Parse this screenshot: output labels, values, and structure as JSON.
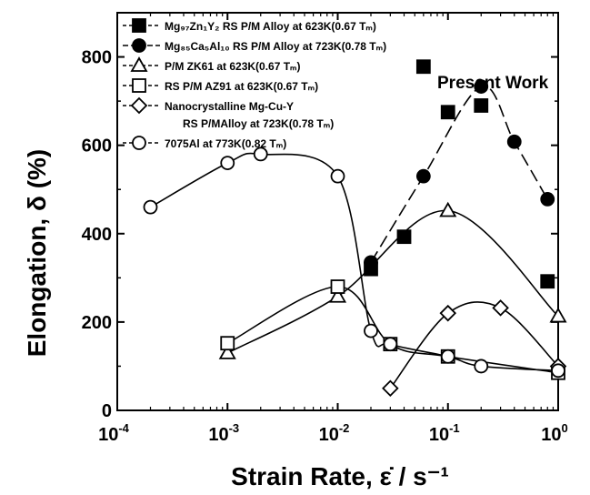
{
  "chart_data": {
    "type": "scatter",
    "title": "",
    "xlabel": "Strain Rate, ε̇ / s⁻¹",
    "ylabel": "Elongation, δ (%)",
    "x_scale": "log",
    "xlim": [
      0.0001,
      1
    ],
    "ylim": [
      0,
      900
    ],
    "x_ticks": [
      {
        "value": 0.0001,
        "base": "10",
        "exp": "-4"
      },
      {
        "value": 0.001,
        "base": "10",
        "exp": "-3"
      },
      {
        "value": 0.01,
        "base": "10",
        "exp": "-2"
      },
      {
        "value": 0.1,
        "base": "10",
        "exp": "-1"
      },
      {
        "value": 1,
        "base": "10",
        "exp": "0"
      }
    ],
    "y_ticks": [
      0,
      200,
      400,
      600,
      800
    ],
    "grid": false,
    "legend_placement": "top-left inside",
    "annotations": [
      "Present Work"
    ],
    "series": [
      {
        "name": "Mg97Zn1Y2 RS P/M Alloy at 623K(0.67 Tm)",
        "legend_lines": [
          "Mg₉₇Zn₁Y₂ RS P/M Alloy at 623K(0.67 Tₘ)"
        ],
        "marker": "square-filled",
        "line": "none",
        "points": [
          [
            0.02,
            320
          ],
          [
            0.04,
            393
          ],
          [
            0.06,
            778
          ],
          [
            0.1,
            675
          ],
          [
            0.2,
            690
          ],
          [
            0.8,
            292
          ]
        ]
      },
      {
        "name": "Mg85Ca5Al10 RS P/M Alloy at 723K(0.78 Tm)",
        "legend_lines": [
          "Mg₈₅Ca₅Al₁₀ RS P/M Alloy at 723K(0.78 Tₘ)"
        ],
        "marker": "circle-filled",
        "line": "dashed",
        "points": [
          [
            0.02,
            335
          ],
          [
            0.06,
            530
          ],
          [
            0.2,
            733
          ],
          [
            0.4,
            608
          ],
          [
            0.8,
            478
          ]
        ]
      },
      {
        "name": "P/M ZK61 at 623K(0.67 Tm)",
        "legend_lines": [
          "P/M ZK61 at 623K(0.67 Tₘ)"
        ],
        "marker": "triangle-open",
        "line": "solid",
        "points": [
          [
            0.001,
            130
          ],
          [
            0.01,
            258
          ],
          [
            0.1,
            452
          ],
          [
            1,
            213
          ]
        ]
      },
      {
        "name": "RS P/M AZ91 at 623K(0.67 Tm)",
        "legend_lines": [
          "RS P/M AZ91 at 623K(0.67 Tₘ)"
        ],
        "marker": "square-open",
        "line": "solid",
        "points": [
          [
            0.001,
            152
          ],
          [
            0.01,
            280
          ],
          [
            0.03,
            150
          ],
          [
            0.1,
            122
          ],
          [
            1,
            85
          ]
        ]
      },
      {
        "name": "Nanocrystalline Mg-Cu-Y RS P/MAlloy at 723K(0.78 Tm)",
        "legend_lines": [
          "Nanocrystalline Mg-Cu-Y",
          "RS P/MAlloy at 723K(0.78 Tₘ)"
        ],
        "marker": "diamond-open",
        "line": "solid",
        "points": [
          [
            0.03,
            50
          ],
          [
            0.1,
            220
          ],
          [
            0.3,
            232
          ],
          [
            1,
            100
          ]
        ]
      },
      {
        "name": "7075Al at 773K(0.82 Tm)",
        "legend_lines": [
          "7075Al at 773K(0.82 Tₘ)"
        ],
        "marker": "circle-open",
        "line": "solid",
        "points": [
          [
            0.0002,
            460
          ],
          [
            0.001,
            560
          ],
          [
            0.002,
            580
          ],
          [
            0.01,
            530
          ],
          [
            0.02,
            180
          ],
          [
            0.03,
            150
          ],
          [
            0.1,
            122
          ],
          [
            0.2,
            100
          ],
          [
            1,
            90
          ]
        ]
      }
    ]
  }
}
